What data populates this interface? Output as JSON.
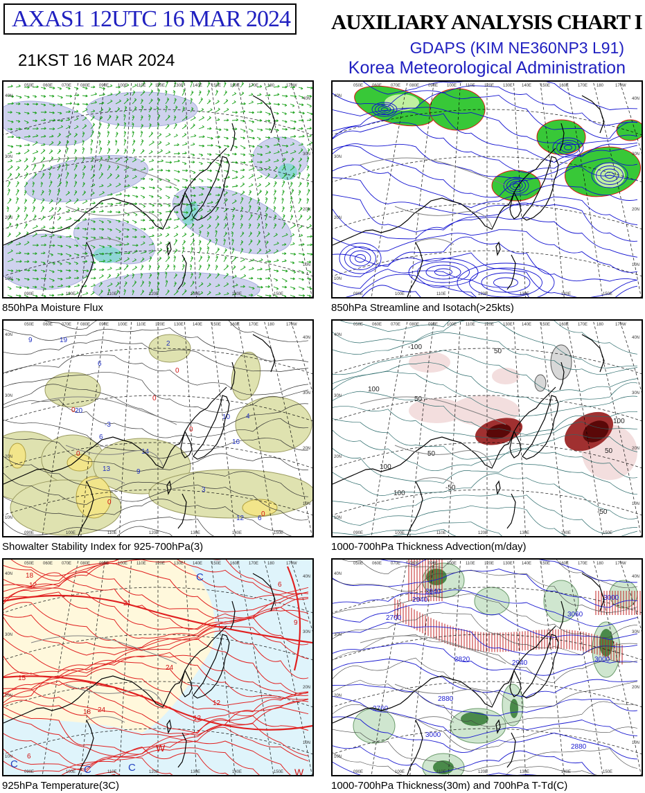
{
  "header": {
    "product_id": "AXAS1  12UTC 16 MAR 2024",
    "local_time": "21KST 16 MAR 2024",
    "chart_title": "AUXILIARY ANALYSIS CHART  I",
    "model": "GDAPS (KIM NE360NP3 L91)",
    "agency": "Korea Meteorological Administration"
  },
  "panels": [
    {
      "caption": "850hPa Moisture Flux",
      "style": "flux"
    },
    {
      "caption": "850hPa Streamline and Isotach(>25kts)",
      "style": "stream"
    },
    {
      "caption": "Showalter Stability Index for 925-700hPa(3)",
      "style": "ssi"
    },
    {
      "caption": "1000-700hPa Thickness Advection(m/day)",
      "style": "adv"
    },
    {
      "caption": "925hPa Temperature(3C)",
      "style": "temp"
    },
    {
      "caption": "1000-700hPa Thickness(30m) and 700hPa T-Td(C)",
      "style": "thick"
    }
  ],
  "grid_labels": {
    "top": [
      "050E",
      "060E",
      "070E",
      "080E",
      "090E",
      "100E",
      "110E",
      "120E",
      "130E",
      "140E",
      "150E",
      "160E",
      "170E",
      "180",
      "170W"
    ],
    "bottom": [
      "090E",
      "100E",
      "110E",
      "120E",
      "130E",
      "140E",
      "150E"
    ],
    "left": [
      "40N",
      "30N",
      "20N",
      "10N"
    ],
    "right": [
      "40N",
      "30N",
      "20N",
      "10N"
    ]
  },
  "contour_labels": {
    "ssi": [
      "14",
      "20",
      "19",
      "16",
      "6",
      "6",
      "9",
      "6",
      "13",
      "10",
      "4",
      "2",
      "9",
      "12",
      "-3",
      "3"
    ],
    "adv": [
      "50",
      "100",
      "100",
      "-50",
      "50",
      "100",
      "-50",
      "50",
      "100",
      "-100",
      "50"
    ],
    "temp": [
      "12",
      "18",
      "15",
      "6",
      "9",
      "12",
      "21",
      "24",
      "6",
      "12",
      "18",
      "24"
    ],
    "thick": [
      "2940",
      "3000",
      "2820",
      "2880",
      "2760",
      "2700",
      "2940",
      "3000",
      "2880",
      "3000",
      "3060",
      "2940"
    ]
  },
  "colors": {
    "title_blue": "#2020c0",
    "coast": "#000000",
    "border": "#808080",
    "grid": "#000000"
  }
}
